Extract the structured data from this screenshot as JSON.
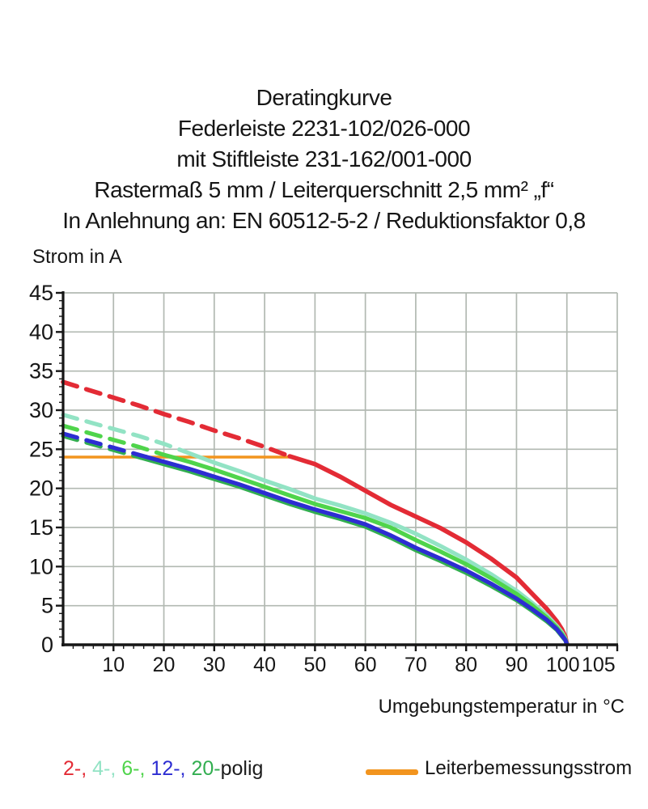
{
  "title": {
    "lines": [
      "Deratingkurve",
      "Federleiste 2231-102/026-000",
      "mit Stiftleiste 231-162/001-000",
      "Rastermaß 5 mm / Leiterquerschnitt 2,5 mm² „f“",
      "In Anlehnung an: EN 60512-5-2 / Reduktionsfaktor 0,8"
    ]
  },
  "chart_data": {
    "type": "line",
    "title": "Deratingkurve",
    "xlabel": "Umgebungstemperatur in °C",
    "ylabel": "Strom in A",
    "xlim": [
      0,
      110
    ],
    "ylim": [
      0,
      45
    ],
    "grid": true,
    "x_grid_step": 10,
    "y_grid_step": 5,
    "x_tick_labels": [
      10,
      20,
      30,
      40,
      50,
      60,
      70,
      80,
      90,
      100,
      105
    ],
    "y_tick_labels": [
      0,
      5,
      10,
      15,
      20,
      25,
      30,
      35,
      40,
      45
    ],
    "x_minor_step": 2,
    "y_minor_step": 1,
    "rated_current": {
      "label": "Leiterbemessungsstrom",
      "value_a": 24,
      "x_start": 0,
      "x_end": 45,
      "color": "#f2941e"
    },
    "series": [
      {
        "name": "2-polig",
        "color": "#e32b35",
        "dash_until": 45,
        "width": 5.6,
        "points": [
          [
            0,
            33.6
          ],
          [
            5,
            32.6
          ],
          [
            10,
            31.6
          ],
          [
            15,
            30.6
          ],
          [
            20,
            29.5
          ],
          [
            25,
            28.5
          ],
          [
            30,
            27.4
          ],
          [
            35,
            26.4
          ],
          [
            40,
            25.3
          ],
          [
            45,
            24.1
          ],
          [
            50,
            23.1
          ],
          [
            55,
            21.5
          ],
          [
            60,
            19.7
          ],
          [
            65,
            17.9
          ],
          [
            70,
            16.4
          ],
          [
            75,
            14.9
          ],
          [
            80,
            13.1
          ],
          [
            85,
            11.0
          ],
          [
            90,
            8.6
          ],
          [
            93,
            6.6
          ],
          [
            96,
            4.6
          ],
          [
            98,
            3.0
          ],
          [
            99,
            2.0
          ],
          [
            99.7,
            1.0
          ],
          [
            100,
            0.15
          ]
        ]
      },
      {
        "name": "4-polig",
        "color": "#92e3c4",
        "dash_until": 24,
        "width": 5.2,
        "points": [
          [
            0,
            29.4
          ],
          [
            5,
            28.5
          ],
          [
            10,
            27.6
          ],
          [
            15,
            26.7
          ],
          [
            20,
            25.7
          ],
          [
            25,
            24.5
          ],
          [
            30,
            23.3
          ],
          [
            35,
            22.2
          ],
          [
            40,
            21.0
          ],
          [
            45,
            19.9
          ],
          [
            50,
            18.7
          ],
          [
            55,
            17.8
          ],
          [
            60,
            16.8
          ],
          [
            65,
            15.6
          ],
          [
            70,
            14.2
          ],
          [
            75,
            12.6
          ],
          [
            80,
            10.9
          ],
          [
            85,
            9.0
          ],
          [
            90,
            6.9
          ],
          [
            93,
            5.4
          ],
          [
            96,
            3.8
          ],
          [
            98,
            2.4
          ],
          [
            99,
            1.6
          ],
          [
            99.7,
            0.8
          ],
          [
            100,
            0.1
          ]
        ]
      },
      {
        "name": "6-polig",
        "color": "#4fd44b",
        "dash_until": 19,
        "width": 5.2,
        "points": [
          [
            0,
            28.0
          ],
          [
            5,
            27.1
          ],
          [
            10,
            26.2
          ],
          [
            15,
            25.3
          ],
          [
            20,
            24.3
          ],
          [
            25,
            23.4
          ],
          [
            30,
            22.4
          ],
          [
            35,
            21.3
          ],
          [
            40,
            20.2
          ],
          [
            45,
            19.1
          ],
          [
            50,
            18.0
          ],
          [
            55,
            17.1
          ],
          [
            60,
            16.2
          ],
          [
            65,
            15.0
          ],
          [
            70,
            13.4
          ],
          [
            75,
            11.9
          ],
          [
            80,
            10.3
          ],
          [
            85,
            8.5
          ],
          [
            90,
            6.5
          ],
          [
            93,
            5.1
          ],
          [
            96,
            3.5
          ],
          [
            98,
            2.2
          ],
          [
            99,
            1.4
          ],
          [
            99.7,
            0.7
          ],
          [
            100,
            0.1
          ]
        ]
      },
      {
        "name": "20-polig",
        "color": "#32ae50",
        "dash_until": 15.5,
        "width": 5.2,
        "points": [
          [
            0,
            26.7
          ],
          [
            5,
            25.8
          ],
          [
            10,
            24.9
          ],
          [
            15,
            24.0
          ],
          [
            20,
            23.1
          ],
          [
            25,
            22.2
          ],
          [
            30,
            21.2
          ],
          [
            35,
            20.2
          ],
          [
            40,
            19.1
          ],
          [
            45,
            18.0
          ],
          [
            50,
            17.0
          ],
          [
            55,
            16.1
          ],
          [
            60,
            15.1
          ],
          [
            65,
            13.7
          ],
          [
            70,
            12.1
          ],
          [
            75,
            10.7
          ],
          [
            80,
            9.2
          ],
          [
            85,
            7.5
          ],
          [
            90,
            5.7
          ],
          [
            93,
            4.4
          ],
          [
            96,
            3.0
          ],
          [
            98,
            1.9
          ],
          [
            99,
            1.1
          ],
          [
            99.7,
            0.55
          ],
          [
            100,
            0.05
          ]
        ]
      },
      {
        "name": "12-polig",
        "color": "#2d2dd2",
        "dash_until": 16.5,
        "width": 5.2,
        "points": [
          [
            0,
            27.0
          ],
          [
            5,
            26.1
          ],
          [
            10,
            25.2
          ],
          [
            15,
            24.3
          ],
          [
            20,
            23.4
          ],
          [
            25,
            22.5
          ],
          [
            30,
            21.5
          ],
          [
            35,
            20.5
          ],
          [
            40,
            19.4
          ],
          [
            45,
            18.3
          ],
          [
            50,
            17.3
          ],
          [
            55,
            16.4
          ],
          [
            60,
            15.4
          ],
          [
            65,
            14.0
          ],
          [
            70,
            12.4
          ],
          [
            75,
            11.0
          ],
          [
            80,
            9.5
          ],
          [
            85,
            7.8
          ],
          [
            90,
            5.9
          ],
          [
            93,
            4.6
          ],
          [
            96,
            3.2
          ],
          [
            98,
            2.0
          ],
          [
            99,
            1.2
          ],
          [
            99.7,
            0.6
          ],
          [
            100,
            0.05
          ]
        ]
      }
    ],
    "colors": {
      "grid": "#b2b9b2",
      "axis": "#161616",
      "orange": "#f2941e"
    }
  },
  "legend": {
    "poles": [
      {
        "label": "2-,",
        "color": "#e32b35"
      },
      {
        "label": "4-,",
        "color": "#92e3c4"
      },
      {
        "label": "6-,",
        "color": "#4fd44b"
      },
      {
        "label": "12-,",
        "color": "#2d2dd2"
      },
      {
        "label": "20-",
        "color": "#32ae50"
      }
    ],
    "poles_suffix": "polig",
    "rated_label": "Leiterbemessungsstrom",
    "rated_color": "#f2941e"
  }
}
